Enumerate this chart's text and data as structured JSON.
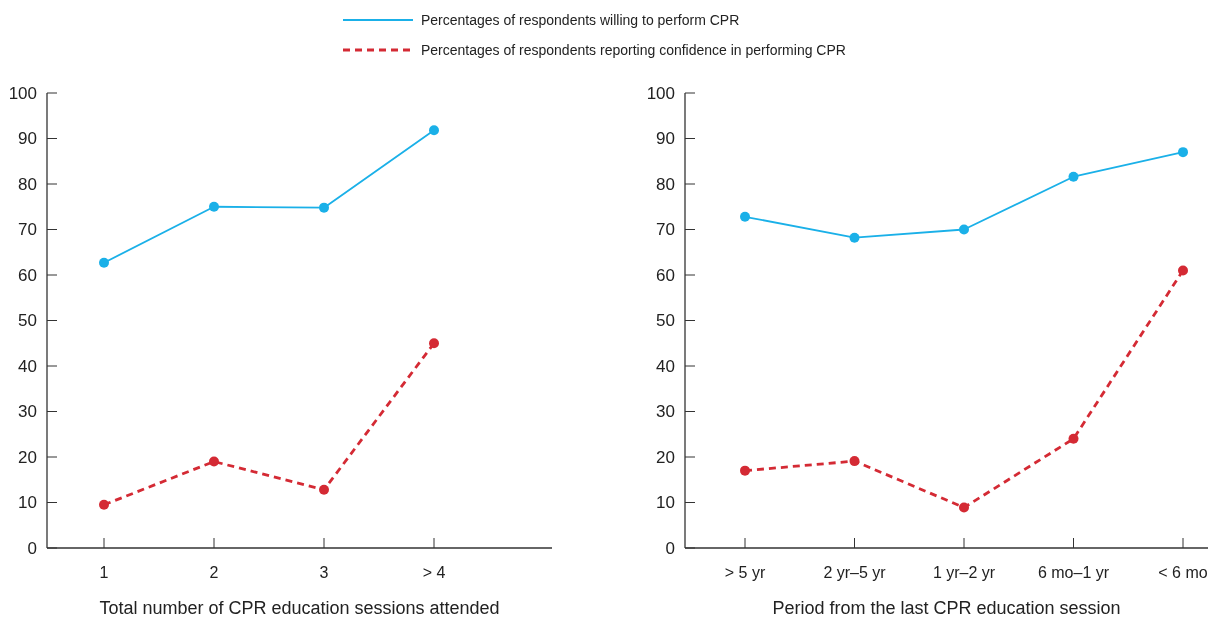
{
  "chart_data": [
    {
      "type": "line",
      "xlabel": "Total number of CPR education sessions attended",
      "categories": [
        "1",
        "2",
        "3",
        "> 4"
      ],
      "ylim": [
        0,
        100
      ],
      "yticks": [
        0,
        10,
        20,
        30,
        40,
        50,
        60,
        70,
        80,
        90,
        100
      ],
      "grid": false,
      "legend": "top",
      "marker": "circle",
      "series": [
        {
          "name": "Percentages of respondents willing to perform CPR",
          "color": "#1ab0e8",
          "line_style": "solid",
          "values": [
            62.7,
            75,
            74.8,
            91.8
          ]
        },
        {
          "name": "Percentages of respondents reporting confidence in performing CPR",
          "color": "#d42a34",
          "line_style": "dashed",
          "values": [
            9.5,
            19,
            12.8,
            45
          ]
        }
      ]
    },
    {
      "type": "line",
      "xlabel": "Period from the last CPR education session",
      "categories": [
        "> 5 yr",
        "2 yr–5 yr",
        "1 yr–2 yr",
        "6 mo–1 yr",
        "< 6 mo"
      ],
      "ylim": [
        0,
        100
      ],
      "yticks": [
        0,
        10,
        20,
        30,
        40,
        50,
        60,
        70,
        80,
        90,
        100
      ],
      "grid": false,
      "marker": "circle",
      "series": [
        {
          "color": "#1ab0e8",
          "line_style": "solid",
          "values": [
            72.8,
            68.2,
            70,
            81.6,
            87
          ]
        },
        {
          "color": "#d42a34",
          "line_style": "dashed",
          "values": [
            17,
            19.1,
            8.9,
            24,
            61
          ]
        }
      ]
    }
  ]
}
